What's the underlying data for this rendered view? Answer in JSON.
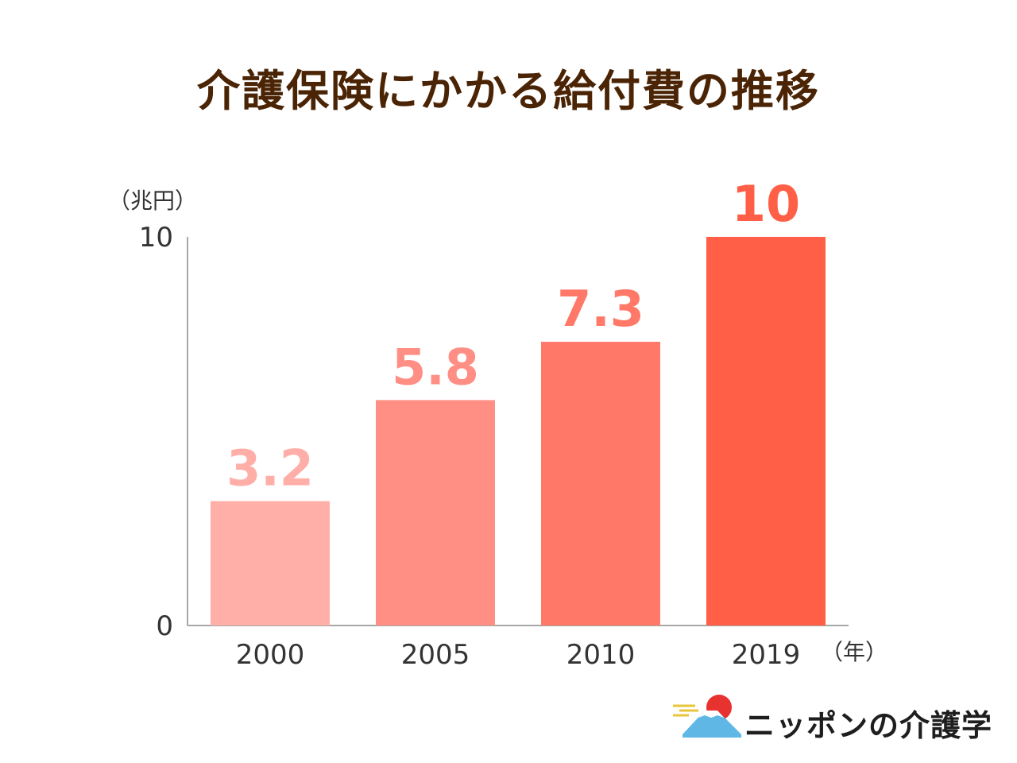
{
  "title": "介護保険にかかる給付費の推移",
  "chart_data": {
    "type": "bar",
    "title": "介護保険にかかる給付費の推移",
    "ylabel": "（兆円）",
    "xlabel": "（年）",
    "ylim": [
      0,
      10
    ],
    "y_ticks": [
      "0",
      "10"
    ],
    "categories": [
      "2000",
      "2005",
      "2010",
      "2019"
    ],
    "values": [
      3.2,
      5.8,
      7.3,
      10
    ],
    "value_labels": [
      "3.2",
      "5.8",
      "7.3",
      "10"
    ],
    "colors": [
      "#ffaea8",
      "#ff8f85",
      "#ff7868",
      "#ff5f47"
    ],
    "axis_color": "#8a8a8a",
    "grid": false
  },
  "logo": {
    "text": "ニッポンの介護学",
    "accent_sun": "#e8322f",
    "accent_gold": "#e8c63a",
    "accent_sky": "#5fb7e6"
  }
}
